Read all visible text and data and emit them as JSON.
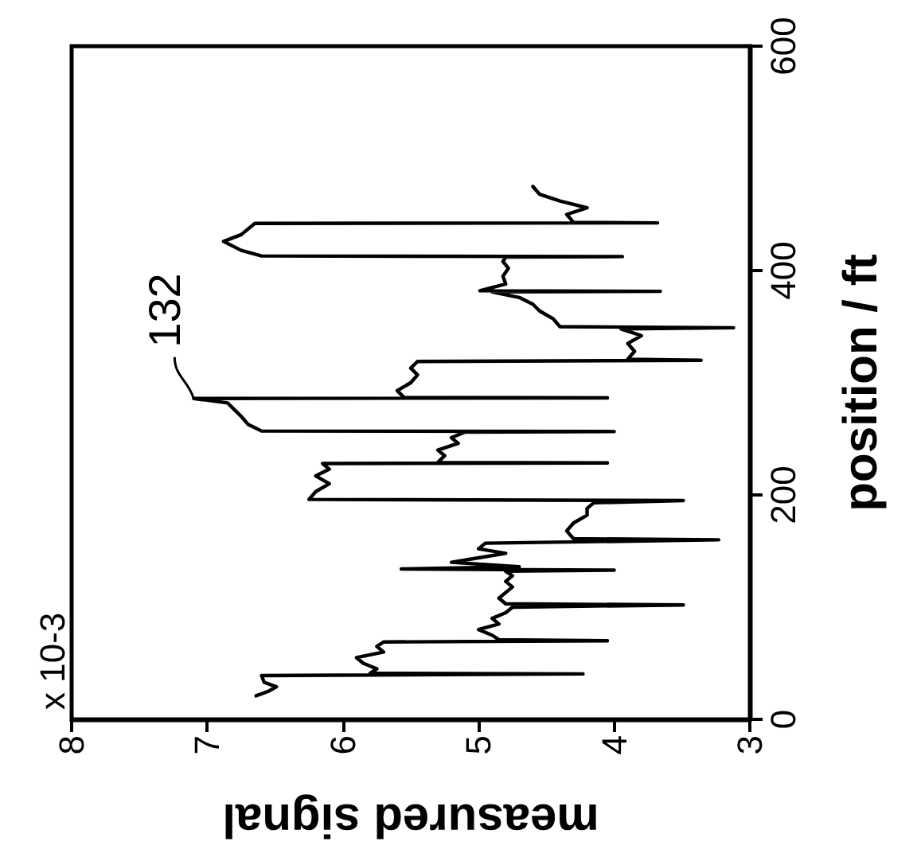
{
  "chart_data": {
    "type": "line",
    "xlabel": "measured signal",
    "ylabel": "position / ft",
    "xlim": [
      8,
      3
    ],
    "xticks": [
      8,
      7,
      6,
      5,
      4,
      3
    ],
    "ylim": [
      0,
      600
    ],
    "yticks": [
      0,
      200,
      400,
      600
    ],
    "grid": false,
    "marker": "none",
    "line_style": "solid",
    "annotations": [
      "x 10-3",
      {
        "text": "132",
        "x": 7.1,
        "y": 286
      }
    ],
    "x": [
      6.64,
      6.55,
      6.49,
      6.58,
      6.6,
      6.6,
      4.23,
      5.8,
      5.75,
      5.85,
      5.9,
      5.7,
      5.75,
      5.7,
      4.05,
      4.85,
      4.9,
      5.0,
      4.85,
      4.9,
      4.8,
      4.75,
      3.49,
      4.8,
      4.85,
      4.8,
      4.75,
      4.8,
      4.75,
      4.8,
      4.0,
      5.57,
      4.7,
      5.2,
      5.0,
      4.8,
      5.0,
      4.95,
      3.23,
      4.3,
      4.35,
      4.3,
      4.2,
      4.2,
      4.15,
      3.49,
      6.25,
      6.2,
      6.1,
      6.2,
      6.1,
      6.15,
      4.05,
      5.3,
      5.25,
      5.3,
      5.15,
      5.2,
      5.1,
      4.0,
      6.6,
      6.7,
      6.75,
      6.8,
      6.85,
      7.1,
      4.05,
      5.55,
      5.6,
      5.5,
      5.45,
      5.5,
      5.45,
      3.36,
      3.9,
      3.85,
      3.9,
      3.8,
      3.95,
      3.12,
      4.4,
      4.45,
      4.55,
      4.6,
      4.7,
      4.9,
      3.66,
      4.99,
      4.8,
      4.82,
      4.78,
      4.82,
      4.8,
      3.94,
      6.6,
      6.75,
      6.88,
      6.75,
      6.7,
      6.65,
      3.68,
      4.3,
      4.35,
      4.2,
      4.4,
      4.55,
      4.6
    ],
    "series": [
      {
        "color": "#000000",
        "values": [
          21,
          25,
          29,
          33,
          39,
          40,
          40.5,
          41,
          45,
          50,
          55,
          60,
          65,
          69,
          70,
          71,
          75,
          80,
          85,
          90,
          95,
          100,
          102,
          103,
          108,
          113,
          118,
          123,
          128,
          132,
          133,
          134,
          136,
          140,
          144,
          148,
          152,
          157,
          160,
          161,
          168,
          175,
          182,
          188,
          193,
          195,
          196,
          203,
          210,
          217,
          223,
          228,
          228.5,
          229,
          235,
          240,
          246,
          251,
          256,
          256.5,
          257,
          263,
          270,
          276,
          282,
          286,
          286.5,
          287,
          293,
          300,
          307,
          313,
          319,
          320,
          321,
          328,
          335,
          342,
          348,
          349,
          350,
          357,
          364,
          370,
          376,
          381,
          381.5,
          382,
          388,
          395,
          402,
          408,
          412,
          412.5,
          413,
          418,
          426,
          432,
          437,
          442,
          442.5,
          443,
          450,
          456,
          462,
          468,
          475
        ]
      }
    ]
  }
}
